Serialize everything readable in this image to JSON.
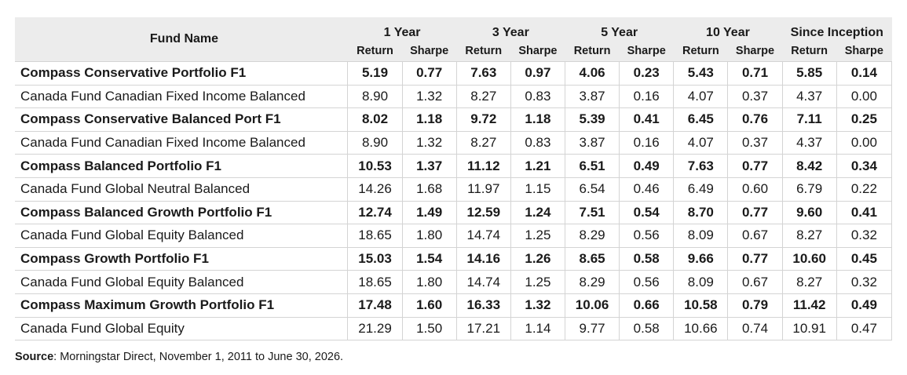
{
  "table": {
    "fund_header": "Fund Name",
    "periods": [
      "1 Year",
      "3 Year",
      "5 Year",
      "10 Year",
      "Since Inception"
    ],
    "sub_return": "Return",
    "sub_sharpe": "Sharpe",
    "rows": [
      {
        "bold": true,
        "name": "Compass Conservative Portfolio F1",
        "values": [
          "5.19",
          "0.77",
          "7.63",
          "0.97",
          "4.06",
          "0.23",
          "5.43",
          "0.71",
          "5.85",
          "0.14"
        ]
      },
      {
        "bold": false,
        "name": "Canada Fund Canadian Fixed Income Balanced",
        "values": [
          "8.90",
          "1.32",
          "8.27",
          "0.83",
          "3.87",
          "0.16",
          "4.07",
          "0.37",
          "4.37",
          "0.00"
        ]
      },
      {
        "bold": true,
        "name": "Compass Conservative Balanced Port F1",
        "values": [
          "8.02",
          "1.18",
          "9.72",
          "1.18",
          "5.39",
          "0.41",
          "6.45",
          "0.76",
          "7.11",
          "0.25"
        ]
      },
      {
        "bold": false,
        "name": "Canada Fund Canadian Fixed Income Balanced",
        "values": [
          "8.90",
          "1.32",
          "8.27",
          "0.83",
          "3.87",
          "0.16",
          "4.07",
          "0.37",
          "4.37",
          "0.00"
        ]
      },
      {
        "bold": true,
        "name": "Compass Balanced Portfolio F1",
        "values": [
          "10.53",
          "1.37",
          "11.12",
          "1.21",
          "6.51",
          "0.49",
          "7.63",
          "0.77",
          "8.42",
          "0.34"
        ]
      },
      {
        "bold": false,
        "name": "Canada Fund Global Neutral Balanced",
        "values": [
          "14.26",
          "1.68",
          "11.97",
          "1.15",
          "6.54",
          "0.46",
          "6.49",
          "0.60",
          "6.79",
          "0.22"
        ]
      },
      {
        "bold": true,
        "name": "Compass Balanced Growth Portfolio F1",
        "values": [
          "12.74",
          "1.49",
          "12.59",
          "1.24",
          "7.51",
          "0.54",
          "8.70",
          "0.77",
          "9.60",
          "0.41"
        ]
      },
      {
        "bold": false,
        "name": "Canada Fund Global Equity Balanced",
        "values": [
          "18.65",
          "1.80",
          "14.74",
          "1.25",
          "8.29",
          "0.56",
          "8.09",
          "0.67",
          "8.27",
          "0.32"
        ]
      },
      {
        "bold": true,
        "name": "Compass Growth Portfolio F1",
        "values": [
          "15.03",
          "1.54",
          "14.16",
          "1.26",
          "8.65",
          "0.58",
          "9.66",
          "0.77",
          "10.60",
          "0.45"
        ]
      },
      {
        "bold": false,
        "name": "Canada Fund Global Equity Balanced",
        "values": [
          "18.65",
          "1.80",
          "14.74",
          "1.25",
          "8.29",
          "0.56",
          "8.09",
          "0.67",
          "8.27",
          "0.32"
        ]
      },
      {
        "bold": true,
        "name": "Compass Maximum Growth Portfolio F1",
        "values": [
          "17.48",
          "1.60",
          "16.33",
          "1.32",
          "10.06",
          "0.66",
          "10.58",
          "0.79",
          "11.42",
          "0.49"
        ]
      },
      {
        "bold": false,
        "name": "Canada Fund Global Equity",
        "values": [
          "21.29",
          "1.50",
          "17.21",
          "1.14",
          "9.77",
          "0.58",
          "10.66",
          "0.74",
          "10.91",
          "0.47"
        ]
      }
    ]
  },
  "source": {
    "label": "Source",
    "text": ": Morningstar Direct, November 1, 2011 to June 30, 2026."
  }
}
